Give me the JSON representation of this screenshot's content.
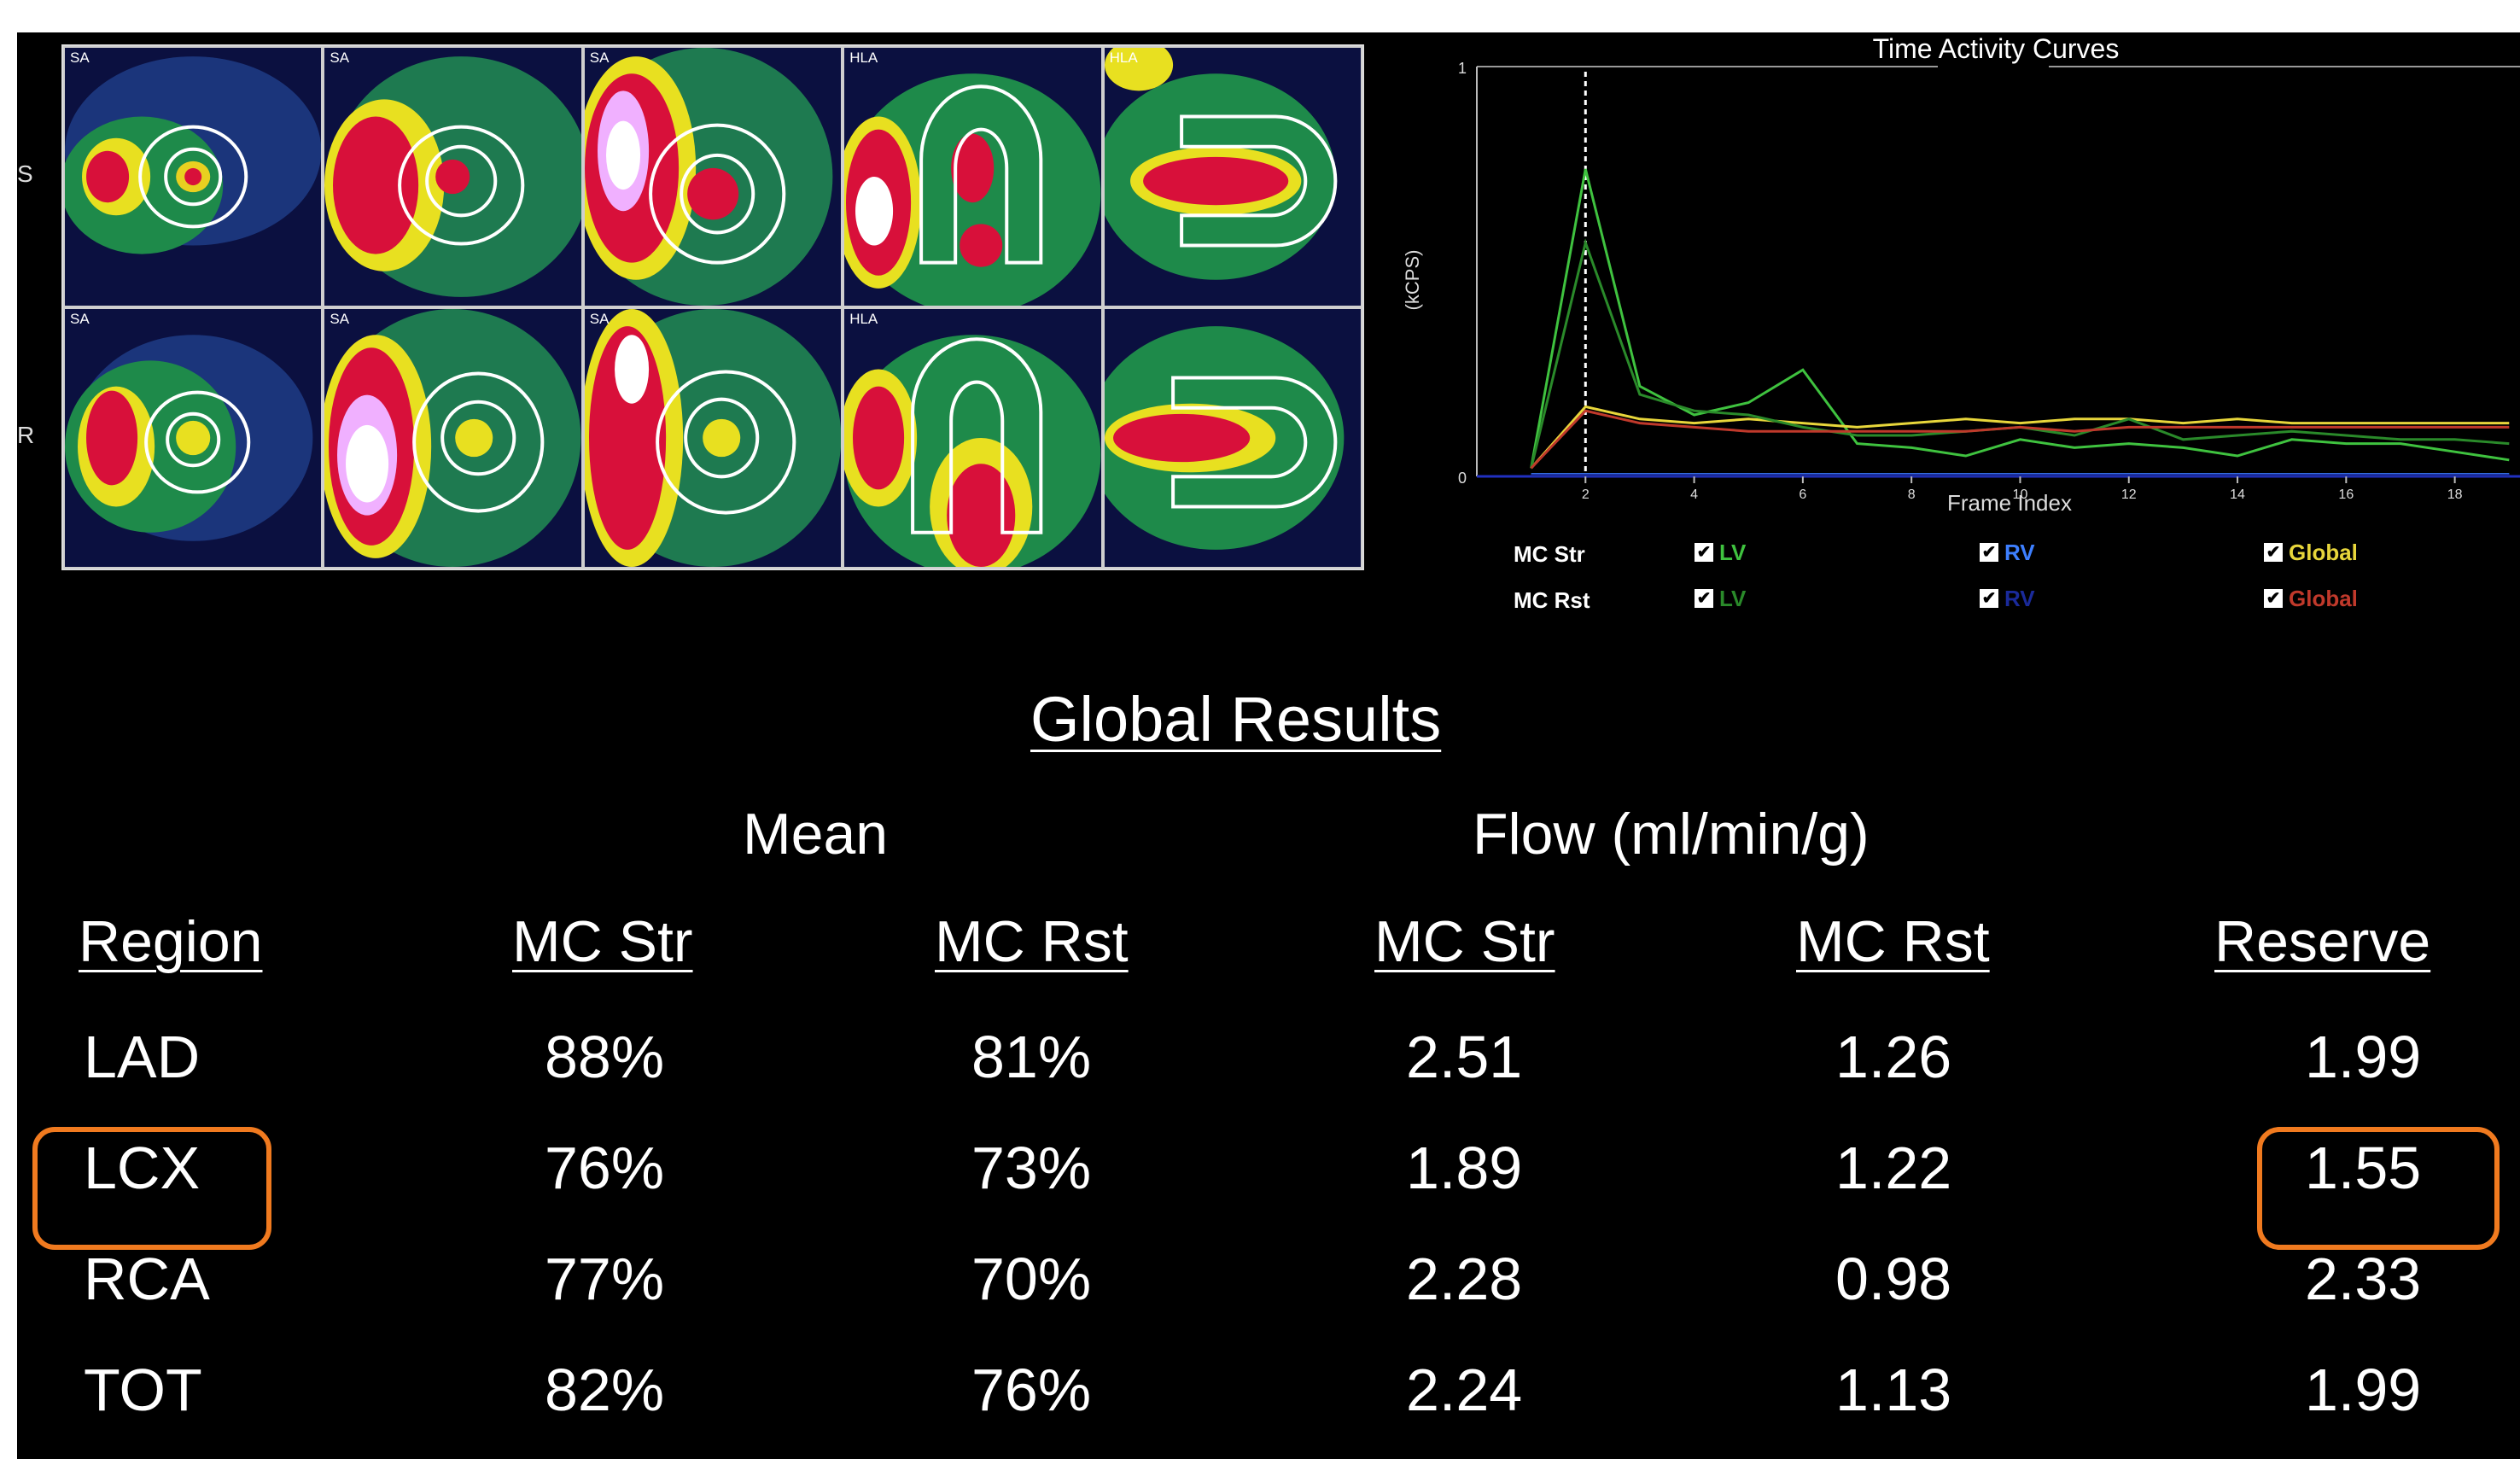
{
  "scan": {
    "side_labels": [
      "S",
      "R"
    ],
    "rows": [
      [
        "SA",
        "SA",
        "SA",
        "HLA",
        "HLA"
      ],
      [
        "SA",
        "SA",
        "SA",
        "HLA",
        ""
      ]
    ]
  },
  "chart_data": {
    "type": "line",
    "title": "Time Activity Curves",
    "xlabel": "Frame Index",
    "ylabel": "(kCPS)",
    "xlim": [
      0,
      19.2
    ],
    "ylim": [
      0,
      1
    ],
    "yticks": [
      "0",
      "1"
    ],
    "xticks": [
      2,
      4,
      6,
      8,
      10,
      12,
      14,
      16,
      18
    ],
    "marker_x": 2,
    "series": [
      {
        "name": "LV",
        "group": "MC Str",
        "color": "#3fc23f",
        "x": [
          1,
          2,
          3,
          4,
          5,
          6,
          7,
          8,
          9,
          10,
          11,
          12,
          13,
          14,
          15,
          16,
          17,
          18,
          19
        ],
        "y": [
          0.02,
          0.75,
          0.22,
          0.15,
          0.18,
          0.26,
          0.08,
          0.07,
          0.05,
          0.09,
          0.07,
          0.08,
          0.07,
          0.05,
          0.09,
          0.08,
          0.08,
          0.06,
          0.04
        ]
      },
      {
        "name": "RV",
        "group": "MC Str",
        "color": "#3d7fff",
        "x": [
          1,
          2,
          3,
          4,
          5,
          6,
          7,
          8,
          9,
          10,
          11,
          12,
          13,
          14,
          15,
          16,
          17,
          18,
          19
        ],
        "y": [
          0.005,
          0.005,
          0.005,
          0.005,
          0.005,
          0.005,
          0.005,
          0.005,
          0.005,
          0.005,
          0.005,
          0.005,
          0.005,
          0.005,
          0.005,
          0.005,
          0.005,
          0.005,
          0.005
        ]
      },
      {
        "name": "Global",
        "group": "MC Str",
        "color": "#e8d63b",
        "x": [
          1,
          2,
          3,
          4,
          5,
          6,
          7,
          8,
          9,
          10,
          11,
          12,
          13,
          14,
          15,
          16,
          17,
          18,
          19
        ],
        "y": [
          0.02,
          0.17,
          0.14,
          0.13,
          0.14,
          0.13,
          0.12,
          0.13,
          0.14,
          0.13,
          0.14,
          0.14,
          0.13,
          0.14,
          0.13,
          0.13,
          0.13,
          0.13,
          0.13
        ]
      },
      {
        "name": "LV",
        "group": "MC Rst",
        "color": "#2a8a2a",
        "x": [
          1,
          2,
          3,
          4,
          5,
          6,
          7,
          8,
          9,
          10,
          11,
          12,
          13,
          14,
          15,
          16,
          17,
          18,
          19
        ],
        "y": [
          0.02,
          0.57,
          0.2,
          0.16,
          0.15,
          0.12,
          0.1,
          0.1,
          0.11,
          0.12,
          0.1,
          0.14,
          0.09,
          0.1,
          0.11,
          0.1,
          0.09,
          0.09,
          0.08
        ]
      },
      {
        "name": "RV",
        "group": "MC Rst",
        "color": "#1a2a9a",
        "x": [
          1,
          2,
          3,
          4,
          5,
          6,
          7,
          8,
          9,
          10,
          11,
          12,
          13,
          14,
          15,
          16,
          17,
          18,
          19
        ],
        "y": [
          0.003,
          0.003,
          0.003,
          0.003,
          0.003,
          0.003,
          0.003,
          0.003,
          0.003,
          0.003,
          0.003,
          0.003,
          0.003,
          0.003,
          0.003,
          0.003,
          0.003,
          0.003,
          0.003
        ]
      },
      {
        "name": "Global",
        "group": "MC Rst",
        "color": "#c0392b",
        "x": [
          1,
          2,
          3,
          4,
          5,
          6,
          7,
          8,
          9,
          10,
          11,
          12,
          13,
          14,
          15,
          16,
          17,
          18,
          19
        ],
        "y": [
          0.02,
          0.16,
          0.13,
          0.12,
          0.11,
          0.11,
          0.11,
          0.11,
          0.11,
          0.12,
          0.11,
          0.12,
          0.12,
          0.12,
          0.12,
          0.12,
          0.12,
          0.12,
          0.12
        ]
      }
    ]
  },
  "legend": {
    "row_labels": [
      "MC Str",
      "MC Rst"
    ],
    "rows": [
      [
        {
          "label": "LV",
          "color": "#3fc23f"
        },
        {
          "label": "RV",
          "color": "#3d7fff"
        },
        {
          "label": "Global",
          "color": "#e8d63b"
        }
      ],
      [
        {
          "label": "LV",
          "color": "#2a8a2a"
        },
        {
          "label": "RV",
          "color": "#1a2a9a"
        },
        {
          "label": "Global",
          "color": "#c0392b"
        }
      ]
    ]
  },
  "results": {
    "title": "Global Results",
    "group_labels": [
      "Mean",
      "Flow (ml/min/g)"
    ],
    "headers": [
      "Region",
      "MC Str",
      "MC Rst",
      "MC Str",
      "MC Rst",
      "Reserve"
    ],
    "rows": [
      [
        "LAD",
        "88%",
        "81%",
        "2.51",
        "1.26",
        "1.99"
      ],
      [
        "LCX",
        "76%",
        "73%",
        "1.89",
        "1.22",
        "1.55"
      ],
      [
        "RCA",
        "77%",
        "70%",
        "2.28",
        "0.98",
        "2.33"
      ],
      [
        "TOT",
        "82%",
        "76%",
        "2.24",
        "1.13",
        "1.99"
      ]
    ],
    "highlight_color": "#f07a1f"
  }
}
